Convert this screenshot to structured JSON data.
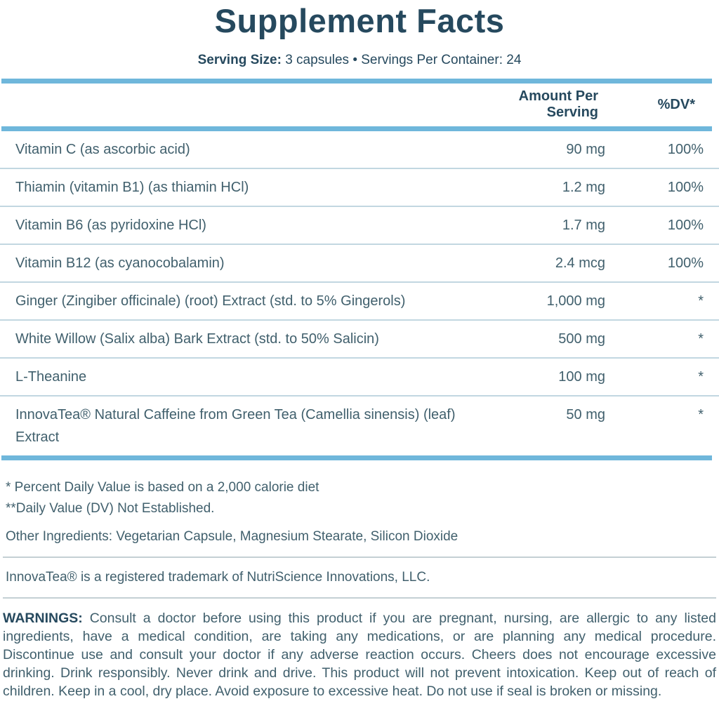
{
  "header": {
    "title": "Supplement Facts",
    "serving_label": "Serving Size:",
    "serving_text": " 3 capsules • Servings Per Container: 24"
  },
  "table": {
    "columns": {
      "amount": "Amount Per Serving",
      "dv": "%DV*"
    },
    "rows": [
      {
        "name": "Vitamin C (as ascorbic acid)",
        "amount": "90 mg",
        "dv": "100%"
      },
      {
        "name": "Thiamin (vitamin B1) (as thiamin HCl)",
        "amount": "1.2 mg",
        "dv": "100%"
      },
      {
        "name": "Vitamin B6 (as pyridoxine HCl)",
        "amount": "1.7 mg",
        "dv": "100%"
      },
      {
        "name": "Vitamin B12 (as cyanocobalamin)",
        "amount": "2.4 mcg",
        "dv": "100%"
      },
      {
        "name": "Ginger (Zingiber officinale) (root) Extract (std. to 5% Gingerols)",
        "amount": "1,000 mg",
        "dv": "*"
      },
      {
        "name": "White Willow (Salix alba) Bark Extract (std. to 50% Salicin)",
        "amount": "500 mg",
        "dv": "*"
      },
      {
        "name": "L-Theanine",
        "amount": "100 mg",
        "dv": "*"
      },
      {
        "name": "InnovaTea® Natural Caffeine from Green Tea (Camellia sinensis) (leaf) Extract",
        "amount": "50 mg",
        "dv": "*"
      }
    ]
  },
  "footnotes": {
    "dv_basis": "* Percent Daily Value is based on a 2,000 calorie diet",
    "dv_not_established": "**Daily Value (DV) Not Established.",
    "other_ingredients": "Other Ingredients: Vegetarian Capsule, Magnesium Stearate, Silicon Dioxide",
    "trademark": "InnovaTea® is a registered trademark of NutriScience Innovations, LLC."
  },
  "warnings": {
    "label": "WARNINGS:",
    "text": " Consult a doctor before using this product if you are pregnant, nursing, are allergic to any listed ingredients, have a medical condition, are taking any medications, or are planning any medical procedure. Discontinue use and consult your doctor if any adverse reaction occurs. Cheers does not encourage excessive drinking. Drink responsibly. Never drink and drive. This product will not prevent intoxication. Keep out of reach of children. Keep in a cool, dry place. Avoid exposure to excessive heat. Do not use if seal is broken or missing."
  },
  "colors": {
    "heading": "#26495e",
    "body_text": "#41606d",
    "rule_thick_blue": "#6fb7db",
    "rule_thin_blue": "#c2d7e1",
    "rule_gray": "#c4d0d4"
  }
}
